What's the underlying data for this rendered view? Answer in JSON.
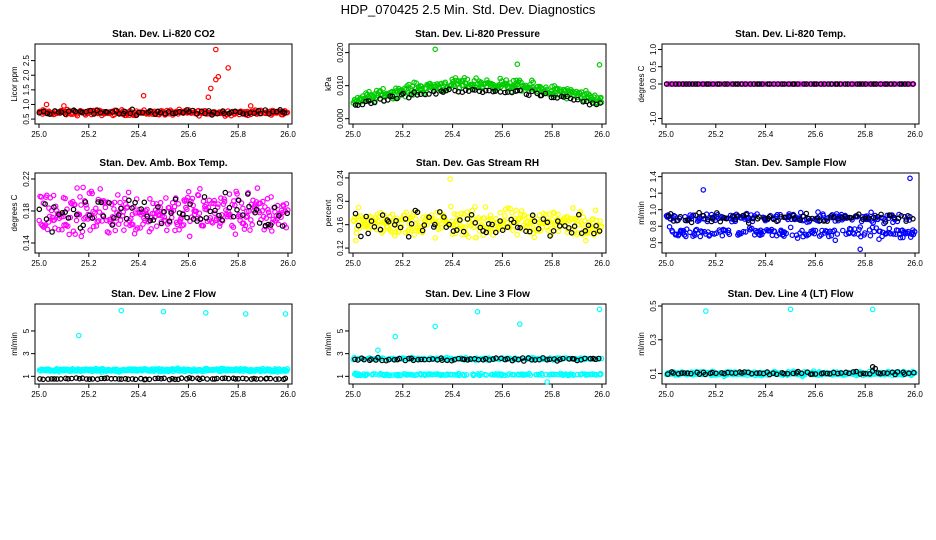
{
  "page": {
    "title": "HDP_070425  2.5 Min. Std. Dev. Diagnostics"
  },
  "colors": {
    "red": "#ff0000",
    "green": "#00cc00",
    "magenta": "#ff00ff",
    "yellow": "#ffff00",
    "blue": "#0000ff",
    "cyan": "#00ffff",
    "black": "#000000"
  },
  "chart_data": [
    {
      "id": "co2",
      "type": "scatter",
      "title": "Stan. Dev. Li-820 CO2",
      "ylabel": "Licor ppm",
      "xlim": [
        25.0,
        26.0
      ],
      "ylim": [
        0.4,
        3.0
      ],
      "xticks": [
        "25.0",
        "25.2",
        "25.4",
        "25.6",
        "25.8",
        "26.0"
      ],
      "yticks": [
        "0.5",
        "1.0",
        "1.5",
        "2.0",
        "2.5"
      ],
      "series": [
        {
          "name": "primary",
          "color": "red",
          "base": 0.72,
          "spread": 0.08,
          "count": 260,
          "outliers": [
            [
              25.03,
              1.0
            ],
            [
              25.1,
              0.95
            ],
            [
              25.42,
              1.3
            ],
            [
              25.68,
              1.25
            ],
            [
              25.69,
              1.55
            ],
            [
              25.71,
              1.85
            ],
            [
              25.72,
              1.95
            ],
            [
              25.76,
              2.25
            ],
            [
              25.71,
              2.88
            ],
            [
              25.85,
              0.95
            ]
          ]
        },
        {
          "name": "secondary",
          "color": "black",
          "base": 0.74,
          "spread": 0.07,
          "count": 70,
          "outliers": []
        }
      ]
    },
    {
      "id": "pressure",
      "type": "scatter",
      "title": "Stan. Dev. Li-820 Pressure",
      "ylabel": "kPa",
      "xlim": [
        25.0,
        26.0
      ],
      "ylim": [
        -0.001,
        0.022
      ],
      "xticks": [
        "25.0",
        "25.2",
        "25.4",
        "25.6",
        "25.8",
        "26.0"
      ],
      "yticks": [
        "0.000",
        "0.010",
        "0.020"
      ],
      "series": [
        {
          "name": "primary",
          "color": "green",
          "profile": "arch",
          "base": 0.0055,
          "peak": 0.0105,
          "spread": 0.0025,
          "count": 300,
          "outliers": [
            [
              25.33,
              0.021
            ],
            [
              25.66,
              0.0165
            ],
            [
              25.99,
              0.0163
            ]
          ]
        },
        {
          "name": "secondary",
          "color": "black",
          "profile": "arch",
          "base": 0.004,
          "peak": 0.0085,
          "spread": 0.0012,
          "count": 70,
          "outliers": []
        }
      ]
    },
    {
      "id": "temp",
      "type": "scatter",
      "title": "Stan. Dev. Li-820 Temp.",
      "ylabel": "degrees C",
      "xlim": [
        25.0,
        26.0
      ],
      "ylim": [
        -1.1,
        1.1
      ],
      "xticks": [
        "25.0",
        "25.2",
        "25.4",
        "25.6",
        "25.8",
        "26.0"
      ],
      "yticks": [
        "-1.0",
        "0.0",
        "0.5",
        "1.0"
      ],
      "series": [
        {
          "name": "primary",
          "color": "magenta",
          "base": 0.0,
          "spread": 0.0,
          "count": 160,
          "outliers": []
        },
        {
          "name": "secondary",
          "color": "black",
          "base": 0.0,
          "spread": 0.0,
          "count": 70,
          "outliers": []
        }
      ]
    },
    {
      "id": "ambbox",
      "type": "scatter",
      "title": "Stan. Dev. Amb. Box Temp.",
      "ylabel": "degrees C",
      "xlim": [
        25.0,
        26.0
      ],
      "ylim": [
        0.13,
        0.225
      ],
      "xticks": [
        "25.0",
        "25.2",
        "25.4",
        "25.6",
        "25.8",
        "26.0"
      ],
      "yticks": [
        "0.14",
        "0.18",
        "0.22"
      ],
      "series": [
        {
          "name": "primary",
          "color": "magenta",
          "base": 0.178,
          "spread": 0.024,
          "count": 330,
          "outliers": []
        },
        {
          "name": "secondary",
          "color": "black",
          "base": 0.178,
          "spread": 0.018,
          "count": 70,
          "outliers": []
        }
      ]
    },
    {
      "id": "rh",
      "type": "scatter",
      "title": "Stan. Dev. Gas Stream RH",
      "ylabel": "percent",
      "xlim": [
        25.0,
        26.0
      ],
      "ylim": [
        0.115,
        0.245
      ],
      "xticks": [
        "25.0",
        "25.2",
        "25.4",
        "25.6",
        "25.8",
        "26.0"
      ],
      "yticks": [
        "0.12",
        "0.16",
        "0.20",
        "0.24"
      ],
      "series": [
        {
          "name": "primary",
          "color": "yellow",
          "base": 0.163,
          "spread": 0.02,
          "count": 330,
          "outliers": [
            [
              25.39,
              0.238
            ]
          ]
        },
        {
          "name": "secondary",
          "color": "black",
          "base": 0.162,
          "spread": 0.018,
          "count": 70,
          "outliers": []
        }
      ]
    },
    {
      "id": "sampleflow",
      "type": "scatter",
      "title": "Stan. Dev. Sample Flow",
      "ylabel": "ml/min",
      "xlim": [
        25.0,
        26.0
      ],
      "ylim": [
        0.5,
        1.42
      ],
      "xticks": [
        "25.0",
        "25.2",
        "25.4",
        "25.6",
        "25.8",
        "26.0"
      ],
      "yticks": [
        "0.6",
        "0.8",
        "1.0",
        "1.2",
        "1.4"
      ],
      "series": [
        {
          "name": "primary",
          "color": "blue",
          "profile": "bands",
          "base": 0.72,
          "peak": 0.9,
          "spread": 0.05,
          "count": 320,
          "outliers": [
            [
              25.15,
              1.24
            ],
            [
              25.68,
              0.63
            ],
            [
              25.78,
              0.52
            ],
            [
              25.98,
              1.38
            ],
            [
              25.47,
              0.7
            ]
          ]
        },
        {
          "name": "secondary",
          "color": "black",
          "base": 0.9,
          "spread": 0.05,
          "count": 70,
          "outliers": []
        }
      ]
    },
    {
      "id": "line2",
      "type": "scatter",
      "title": "Stan. Dev. Line 2 Flow",
      "ylabel": "ml/min",
      "xlim": [
        25.0,
        26.0
      ],
      "ylim": [
        0.5,
        7.2
      ],
      "xticks": [
        "25.0",
        "25.2",
        "25.4",
        "25.6",
        "25.8",
        "26.0"
      ],
      "yticks": [
        "1",
        "3",
        "5"
      ],
      "series": [
        {
          "name": "primary",
          "color": "cyan",
          "base": 1.55,
          "spread": 0.12,
          "count": 320,
          "outliers": [
            [
              25.16,
              4.6
            ],
            [
              25.33,
              6.8
            ],
            [
              25.5,
              6.7
            ],
            [
              25.67,
              6.6
            ],
            [
              25.83,
              6.5
            ],
            [
              25.99,
              6.5
            ]
          ]
        },
        {
          "name": "secondary",
          "color": "black",
          "base": 0.78,
          "spread": 0.06,
          "count": 70,
          "outliers": []
        }
      ]
    },
    {
      "id": "line3",
      "type": "scatter",
      "title": "Stan. Dev. Line 3 Flow",
      "ylabel": "ml/min",
      "xlim": [
        25.0,
        26.0
      ],
      "ylim": [
        0.5,
        7.2
      ],
      "xticks": [
        "25.0",
        "25.2",
        "25.4",
        "25.6",
        "25.8",
        "26.0"
      ],
      "yticks": [
        "1",
        "3",
        "5"
      ],
      "series": [
        {
          "name": "primary",
          "color": "cyan",
          "profile": "bands",
          "base": 1.15,
          "peak": 2.55,
          "spread": 0.08,
          "count": 340,
          "outliers": [
            [
              25.1,
              3.3
            ],
            [
              25.17,
              4.5
            ],
            [
              25.33,
              5.4
            ],
            [
              25.5,
              6.7
            ],
            [
              25.67,
              5.6
            ],
            [
              25.99,
              6.9
            ],
            [
              25.78,
              0.5
            ]
          ]
        },
        {
          "name": "secondary",
          "color": "black",
          "base": 2.5,
          "spread": 0.1,
          "count": 70,
          "outliers": []
        }
      ]
    },
    {
      "id": "line4",
      "type": "scatter",
      "title": "Stan. Dev. Line 4 (LT) Flow",
      "ylabel": "ml/min",
      "xlim": [
        25.0,
        26.0
      ],
      "ylim": [
        0.05,
        0.5
      ],
      "xticks": [
        "25.0",
        "25.2",
        "25.4",
        "25.6",
        "25.8",
        "26.0"
      ],
      "yticks": [
        "0.1",
        "0.3",
        "0.5"
      ],
      "series": [
        {
          "name": "primary",
          "color": "cyan",
          "base": 0.1,
          "spread": 0.01,
          "count": 320,
          "outliers": [
            [
              25.16,
              0.47
            ],
            [
              25.5,
              0.48
            ],
            [
              25.83,
              0.48
            ]
          ]
        },
        {
          "name": "secondary",
          "color": "black",
          "base": 0.103,
          "spread": 0.008,
          "count": 70,
          "outliers": [
            [
              25.83,
              0.14
            ],
            [
              25.84,
              0.13
            ]
          ]
        }
      ]
    }
  ]
}
